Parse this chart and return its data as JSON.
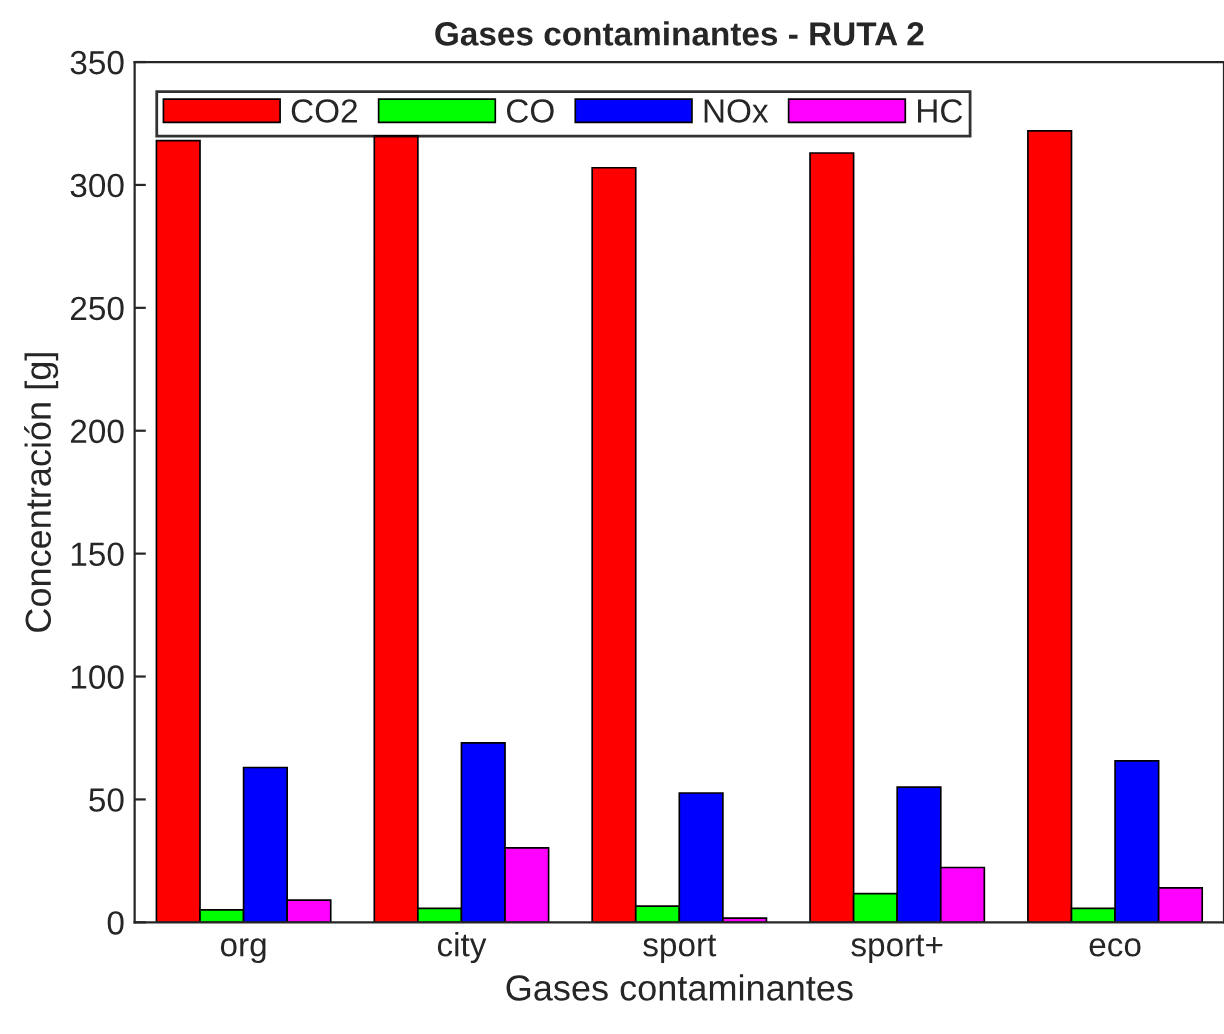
{
  "chart_data": {
    "type": "bar",
    "title": "Gases contaminantes - RUTA 2",
    "xlabel": "Gases contaminantes",
    "ylabel": "Concentración [g]",
    "categories": [
      "org",
      "city",
      "sport",
      "sport+",
      "eco"
    ],
    "series": [
      {
        "name": "CO2",
        "color": "#ff0000",
        "values": [
          318,
          320,
          307,
          313,
          322
        ]
      },
      {
        "name": "CO",
        "color": "#00ff00",
        "values": [
          5.1,
          5.7,
          6.6,
          11.7,
          5.7
        ]
      },
      {
        "name": "NOx",
        "color": "#0000ff",
        "values": [
          63,
          73,
          52.6,
          55,
          65.7
        ]
      },
      {
        "name": "HC",
        "color": "#ff00ff",
        "values": [
          9,
          30.3,
          1.7,
          22.3,
          14
        ]
      }
    ],
    "ylim": [
      0,
      350
    ],
    "yticks": [
      0,
      50,
      100,
      150,
      200,
      250,
      300,
      350
    ],
    "grid": false,
    "legend": "top left"
  }
}
